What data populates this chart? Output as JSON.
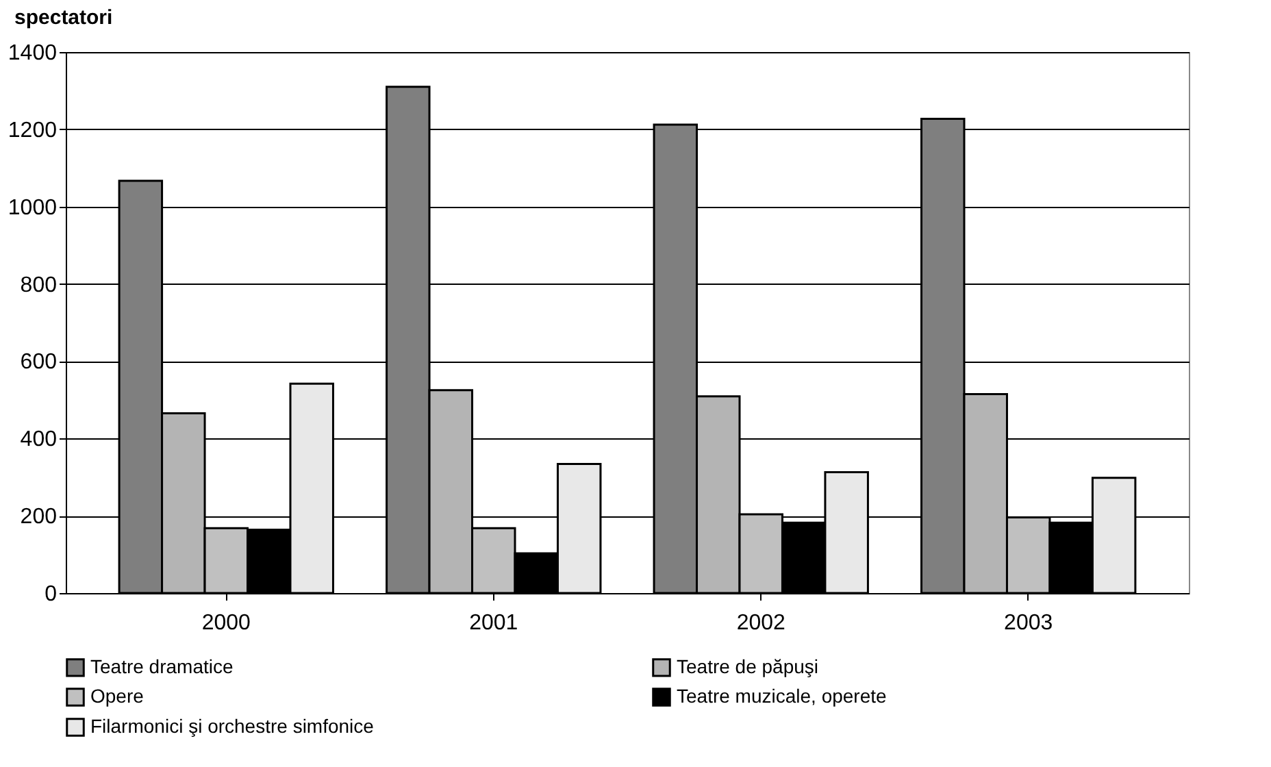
{
  "chart_data": {
    "type": "bar",
    "ylabel": "spectatori",
    "categories": [
      "2000",
      "2001",
      "2002",
      "2003"
    ],
    "series": [
      {
        "name": "Teatre dramatice",
        "color": "#7f7f7f",
        "values": [
          1067,
          1310,
          1212,
          1227
        ]
      },
      {
        "name": "Teatre de păpuşi",
        "color": "#b4b4b4",
        "values": [
          465,
          525,
          509,
          515
        ]
      },
      {
        "name": "Opere",
        "color": "#c0c0c0",
        "values": [
          168,
          168,
          204,
          196
        ]
      },
      {
        "name": "Teatre muzicale, operete",
        "color": "#000000",
        "values": [
          164,
          103,
          182,
          182
        ]
      },
      {
        "name": "Filarmonici şi orchestre simfonice",
        "color": "#e8e8e8",
        "values": [
          542,
          334,
          313,
          298
        ]
      }
    ],
    "ylim": [
      0,
      1400
    ],
    "yticks": [
      0,
      200,
      400,
      600,
      800,
      1000,
      1200,
      1400
    ],
    "grid": "y",
    "legend": "bottom"
  }
}
